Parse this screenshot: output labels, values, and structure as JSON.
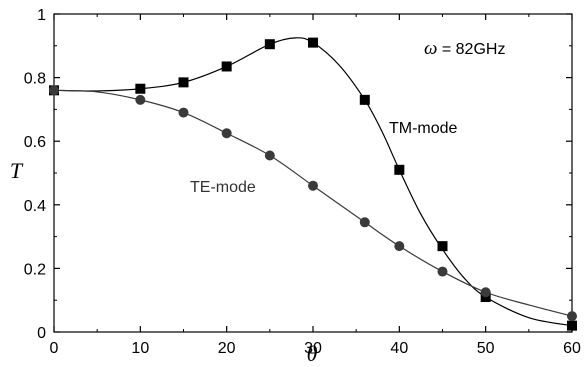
{
  "chart_data": {
    "type": "scatter",
    "xlabel": "θ",
    "ylabel": "T",
    "xlim": [
      0,
      60
    ],
    "ylim": [
      0,
      1
    ],
    "x_ticks": [
      "0",
      "10",
      "20",
      "30",
      "40",
      "50",
      "60"
    ],
    "y_ticks": [
      "0",
      "0.2",
      "0.4",
      "0.6",
      "0.8",
      "1"
    ],
    "grid": false,
    "series": [
      {
        "name": "TM-mode",
        "marker": "square",
        "color": "#000000",
        "x": [
          0,
          10,
          15,
          20,
          25,
          30,
          36,
          40,
          45,
          50,
          60
        ],
        "y": [
          0.76,
          0.765,
          0.785,
          0.835,
          0.905,
          0.91,
          0.73,
          0.51,
          0.27,
          0.11,
          0.02
        ],
        "curve_x": [
          0,
          5,
          10,
          15,
          20,
          25,
          28,
          30,
          33,
          36,
          38,
          40,
          42.5,
          45,
          47.5,
          50,
          55,
          60
        ],
        "curve_y": [
          0.76,
          0.758,
          0.765,
          0.785,
          0.835,
          0.905,
          0.925,
          0.91,
          0.84,
          0.73,
          0.63,
          0.51,
          0.37,
          0.26,
          0.17,
          0.11,
          0.045,
          0.02
        ]
      },
      {
        "name": "TE-mode",
        "marker": "circle",
        "color": "#3a3a3a",
        "x": [
          0,
          10,
          15,
          20,
          25,
          30,
          36,
          40,
          45,
          50,
          60
        ],
        "y": [
          0.76,
          0.73,
          0.69,
          0.625,
          0.555,
          0.46,
          0.345,
          0.27,
          0.19,
          0.125,
          0.05
        ],
        "curve_x": [
          0,
          5,
          10,
          15,
          20,
          25,
          30,
          36,
          40,
          45,
          50,
          55,
          60
        ],
        "curve_y": [
          0.76,
          0.755,
          0.73,
          0.69,
          0.625,
          0.555,
          0.46,
          0.345,
          0.27,
          0.19,
          0.125,
          0.085,
          0.05
        ]
      }
    ],
    "annotations": {
      "omega_symbol": "ω",
      "omega_value": " = 82GHz",
      "tm_label": "TM-mode",
      "te_label": "TE-mode"
    }
  }
}
